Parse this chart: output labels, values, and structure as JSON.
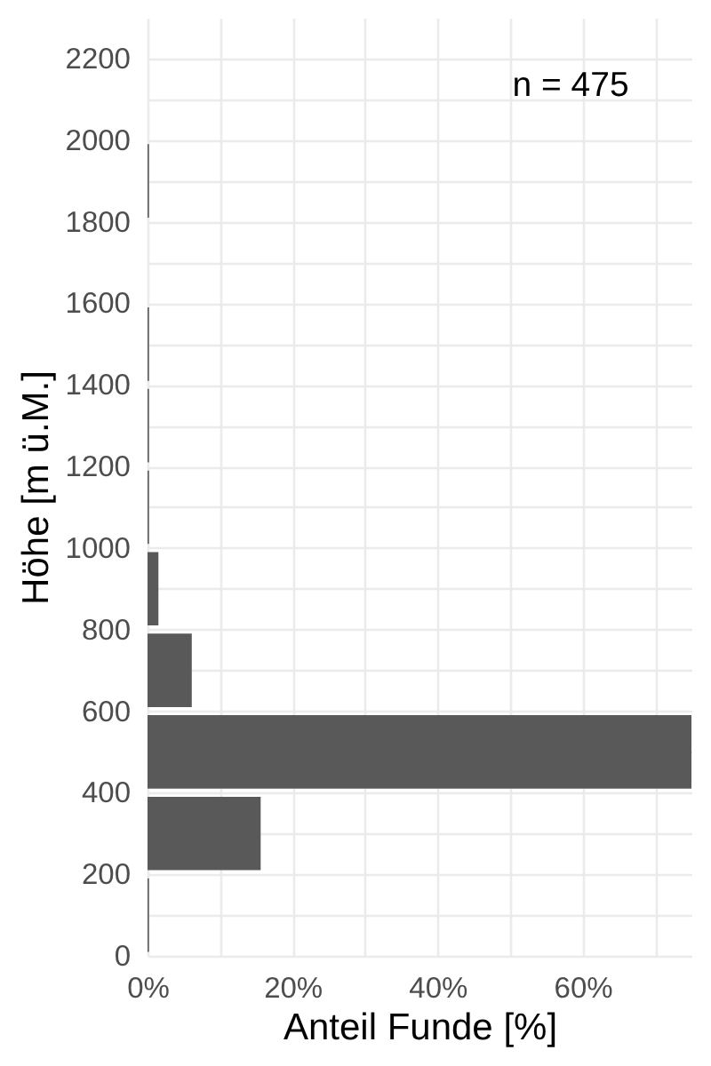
{
  "chart_data": {
    "type": "histogram",
    "orientation": "horizontal",
    "bins": [
      0,
      200,
      400,
      600,
      800,
      1000,
      1200,
      1400,
      1600,
      1800,
      2000
    ],
    "values": [
      0.2,
      15.6,
      75,
      6.1,
      1.5,
      0.2,
      0.2,
      0.2,
      0,
      0.2
    ],
    "color": "#595959",
    "xlabel": "Anteil Funde [%]",
    "ylabel": "Höhe [m ü.M.]",
    "xlim": [
      0,
      75
    ],
    "xticks": [
      {
        "value": 0,
        "label": "0%"
      },
      {
        "value": 10,
        "label": null
      },
      {
        "value": 20,
        "label": "20%"
      },
      {
        "value": 30,
        "label": null
      },
      {
        "value": 40,
        "label": "40%"
      },
      {
        "value": 50,
        "label": null
      },
      {
        "value": 60,
        "label": "60%"
      },
      {
        "value": 70,
        "label": null
      }
    ],
    "ylim": [
      0,
      2300
    ],
    "yticks": [
      0,
      {
        "value": 100,
        "label": null
      },
      200,
      {
        "value": 300,
        "label": null
      },
      400,
      {
        "value": 500,
        "label": null
      },
      600,
      {
        "value": 700,
        "label": null
      },
      800,
      {
        "value": 900,
        "label": null
      },
      1000,
      {
        "value": 1100,
        "label": null
      },
      1200,
      {
        "value": 1300,
        "label": null
      },
      1400,
      {
        "value": 1500,
        "label": null
      },
      1600,
      {
        "value": 1700,
        "label": null
      },
      1800,
      {
        "value": 1900,
        "label": null
      },
      2000,
      {
        "value": 2100,
        "label": null
      },
      2200
    ],
    "grid": true,
    "annotations": [
      "n = 475"
    ]
  }
}
